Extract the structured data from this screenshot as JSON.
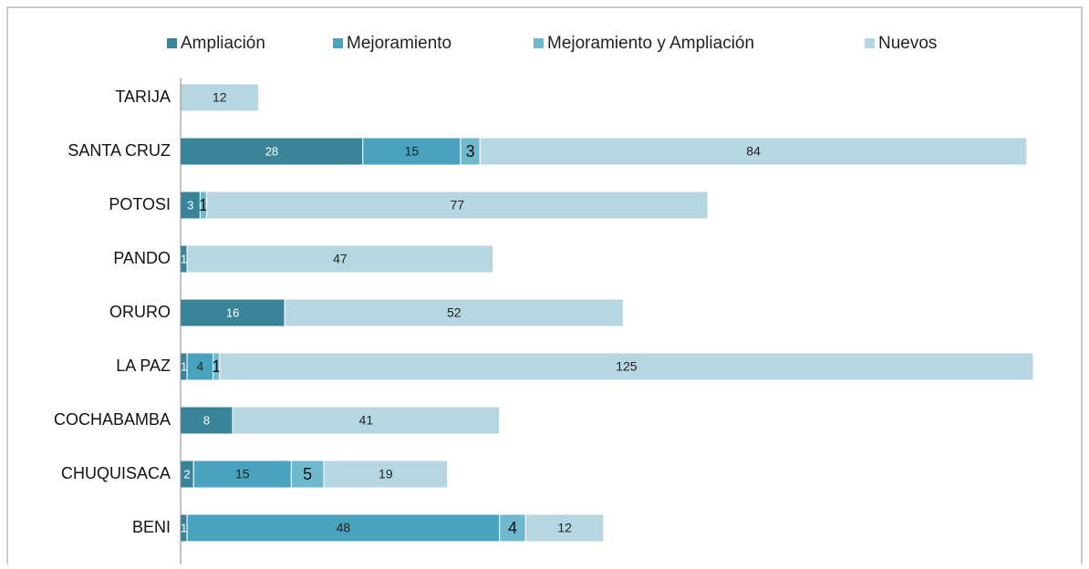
{
  "chart_data": {
    "type": "stacked-barh",
    "categories": [
      "TARIJA",
      "SANTA CRUZ",
      "POTOSI",
      "PANDO",
      "ORURO",
      "LA PAZ",
      "COCHABAMBA",
      "CHUQUISACA",
      "BENI"
    ],
    "series": [
      {
        "name": "Ampliación",
        "color": "#3a8499",
        "values": [
          null,
          28,
          3,
          1,
          16,
          1,
          8,
          2,
          1
        ]
      },
      {
        "name": "Mejoramiento",
        "color": "#4aa3be",
        "values": [
          null,
          15,
          null,
          null,
          null,
          4,
          null,
          15,
          48
        ]
      },
      {
        "name": "Mejoramiento y Ampliación",
        "color": "#6fb9cf",
        "values": [
          null,
          3,
          1,
          null,
          null,
          1,
          null,
          5,
          4
        ]
      },
      {
        "name": "Nuevos",
        "color": "#b6d6e1",
        "values": [
          12,
          84,
          77,
          47,
          52,
          125,
          41,
          19,
          12
        ]
      }
    ],
    "legend": "top"
  }
}
